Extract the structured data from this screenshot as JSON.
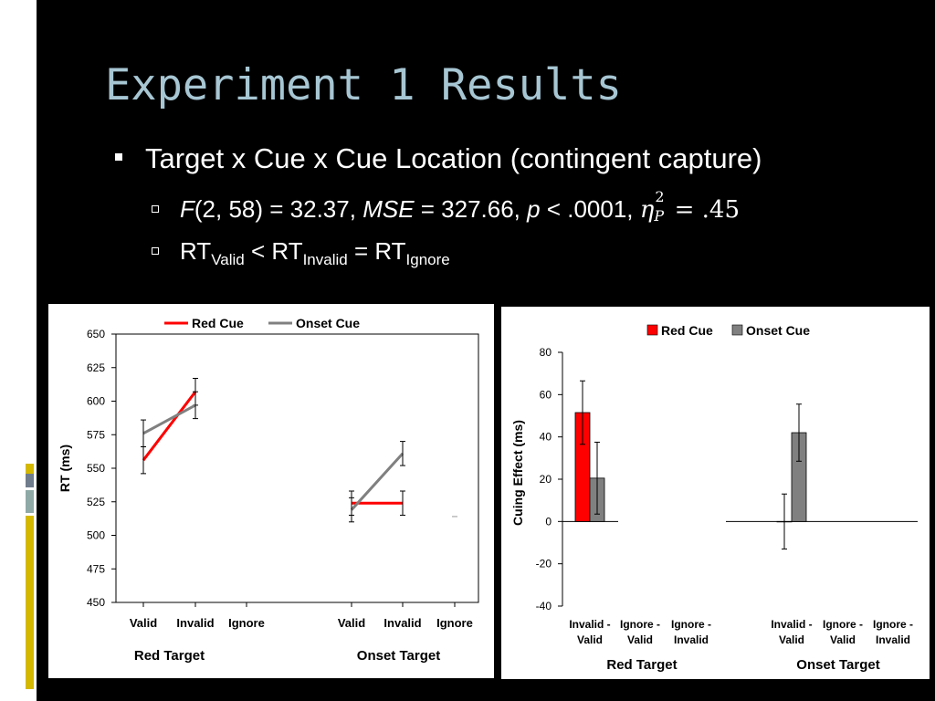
{
  "slide": {
    "title": "Experiment 1 Results",
    "bullets": {
      "main": "Target x Cue x Cue Location (contingent capture)",
      "stat": {
        "f_label": "F",
        "f_args": "(2, 58) = 32.37, ",
        "mse_label": "MSE",
        "mse_val": " = 327.66, ",
        "p_label": "p",
        "p_val": " < .0001, ",
        "eta": "η",
        "eta_sup": "2",
        "eta_sub": "P",
        "eta_val": " = .45"
      },
      "rt": {
        "rt1": "RT",
        "sub1": "Valid",
        "op1": " < RT",
        "sub2": "Invalid",
        "op2": " = RT",
        "sub3": "Ignore"
      }
    }
  },
  "colors": {
    "red_cue": "#ff0000",
    "onset_cue": "#808080",
    "title": "#a7c6d3",
    "accent_strip": [
      "#d4b800",
      "#6f7c8c",
      "#8fa9a7",
      "#d4b800"
    ]
  },
  "chart_data": [
    {
      "type": "line",
      "ylabel": "RT (ms)",
      "ylim": [
        450,
        650
      ],
      "yticks": [
        450,
        475,
        500,
        525,
        550,
        575,
        600,
        625,
        650
      ],
      "grid": false,
      "legend_position": "top",
      "legend": [
        "Red Cue",
        "Onset Cue"
      ],
      "categories": [
        "Valid",
        "Invalid",
        "Ignore",
        "Valid",
        "Invalid",
        "Ignore"
      ],
      "groups": [
        {
          "label": "Red Target",
          "categories": [
            "Valid",
            "Invalid",
            "Ignore"
          ]
        },
        {
          "label": "Onset Target",
          "categories": [
            "Valid",
            "Invalid",
            "Ignore"
          ]
        }
      ],
      "series": [
        {
          "name": "Red Cue",
          "values": [
            556,
            607,
            null,
            524,
            524,
            null
          ],
          "errors": [
            10,
            10,
            null,
            9,
            9,
            null
          ]
        },
        {
          "name": "Onset Cue",
          "values": [
            576,
            597,
            null,
            519,
            561,
            null
          ],
          "errors": [
            10,
            10,
            null,
            9,
            9,
            null
          ]
        }
      ]
    },
    {
      "type": "bar",
      "ylabel": "Cuing Effect (ms)",
      "ylim": [
        -40,
        80
      ],
      "yticks": [
        -40,
        -20,
        0,
        20,
        40,
        60,
        80
      ],
      "grid": false,
      "legend_position": "top",
      "legend": [
        "Red Cue",
        "Onset Cue"
      ],
      "categories": [
        "Invalid - Valid",
        "Ignore - Valid",
        "Ignore - Invalid",
        "Invalid - Valid",
        "Ignore - Valid",
        "Ignore - Invalid"
      ],
      "category_lines": [
        [
          "Invalid -",
          "Valid"
        ],
        [
          "Ignore -",
          "Valid"
        ],
        [
          "Ignore -",
          "Invalid"
        ],
        [
          "Invalid -",
          "Valid"
        ],
        [
          "Ignore -",
          "Valid"
        ],
        [
          "Ignore -",
          "Invalid"
        ]
      ],
      "groups": [
        {
          "label": "Red Target",
          "categories": [
            "Invalid - Valid",
            "Ignore - Valid",
            "Ignore - Invalid"
          ]
        },
        {
          "label": "Onset Target",
          "categories": [
            "Invalid - Valid",
            "Ignore - Valid",
            "Ignore - Invalid"
          ]
        }
      ],
      "series": [
        {
          "name": "Red Cue",
          "values": [
            51.5,
            null,
            null,
            0,
            null,
            null
          ],
          "errors": [
            15,
            null,
            null,
            13,
            null,
            null
          ]
        },
        {
          "name": "Onset Cue",
          "values": [
            20.5,
            null,
            null,
            42,
            null,
            null
          ],
          "errors": [
            17,
            null,
            null,
            13.5,
            null,
            null
          ]
        }
      ]
    }
  ]
}
